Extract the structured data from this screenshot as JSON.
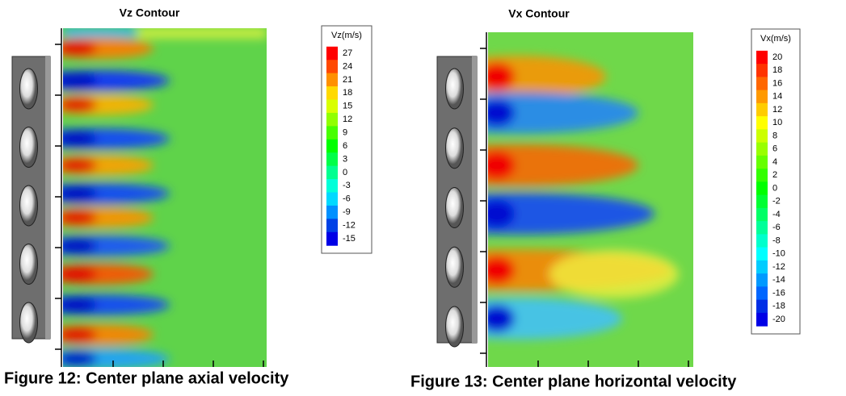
{
  "figures": [
    {
      "title": "Vz Contour",
      "colorbar": {
        "title": "Vz(m/s)",
        "labels": [
          "27",
          "24",
          "21",
          "18",
          "15",
          "12",
          "9",
          "6",
          "3",
          "0",
          "-3",
          "-6",
          "-9",
          "-12",
          "-15"
        ]
      },
      "caption": "Figure 12: Center plane axial velocity"
    },
    {
      "title": "Vx Contour",
      "colorbar": {
        "title": "Vx(m/s)",
        "labels": [
          "20",
          "18",
          "16",
          "14",
          "12",
          "10",
          "8",
          "6",
          "4",
          "2",
          "0",
          "-2",
          "-4",
          "-6",
          "-8",
          "-10",
          "-12",
          "-14",
          "-16",
          "-18",
          "-20"
        ]
      },
      "caption": "Figure 13: Center plane horizontal velocity"
    }
  ]
}
